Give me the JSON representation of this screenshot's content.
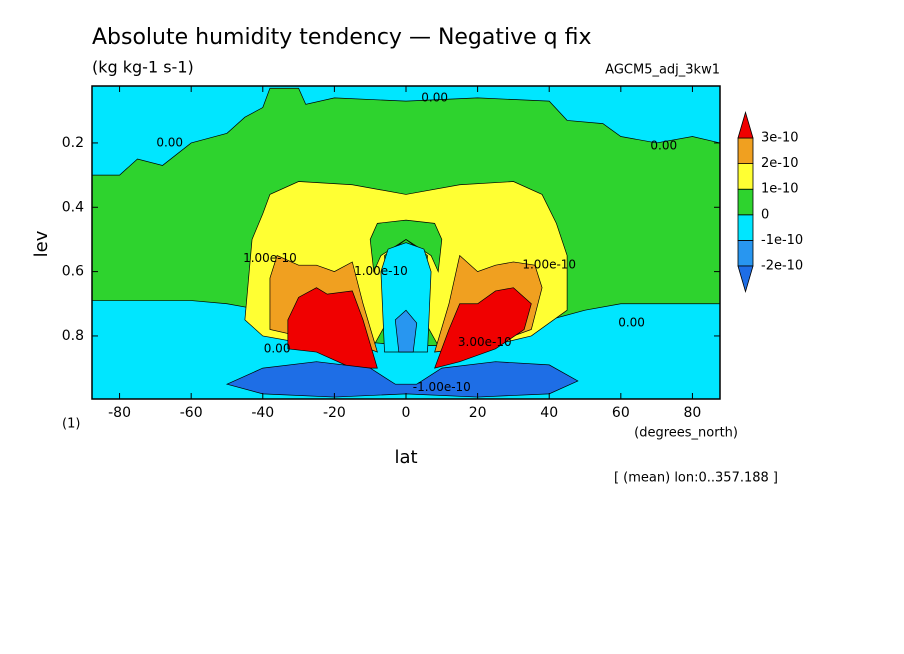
{
  "chart_data": {
    "type": "contour",
    "title": "Absolute humidity tendency — Negative q fix",
    "subtitle": "(kg kg-1 s-1)",
    "run_label": "AGCM5_adj_3kw1",
    "x_label": "lat",
    "x_units": "(degrees_north)",
    "y_label": "lev",
    "y_units": "(1)",
    "footnote": "[ (mean) lon:0..357.188 ]",
    "xlim": [
      -87.7,
      87.7
    ],
    "xticks": [
      -80,
      -60,
      -40,
      -20,
      0,
      20,
      40,
      60,
      80
    ],
    "ylim": [
      0.996,
      0.023
    ],
    "yticks": [
      0.2,
      0.4,
      0.6,
      0.8
    ],
    "levels": [
      -2e-10,
      -1e-10,
      0,
      1e-10,
      2e-10,
      3e-10
    ],
    "colors": [
      "#1e6ee6",
      "#2896f0",
      "#00e6ff",
      "#2ed32e",
      "#ffff33",
      "#f0a020",
      "#f00000"
    ],
    "regions": [
      {
        "color": "#2ed32e",
        "lat": [
          -87.7,
          -80,
          -75,
          -68,
          -60,
          -50,
          -45,
          -40,
          -38,
          -30,
          -28,
          -20,
          0,
          20,
          40,
          45,
          55,
          60,
          70,
          80,
          87.7,
          87.7,
          60,
          50,
          40,
          30,
          20,
          10,
          0,
          -10,
          -20,
          -30,
          -40,
          -50,
          -60,
          -87.7
        ],
        "lev": [
          0.3,
          0.3,
          0.25,
          0.27,
          0.2,
          0.17,
          0.12,
          0.09,
          0.03,
          0.03,
          0.08,
          0.06,
          0.07,
          0.06,
          0.07,
          0.13,
          0.14,
          0.18,
          0.2,
          0.18,
          0.2,
          0.7,
          0.7,
          0.72,
          0.75,
          0.79,
          0.82,
          0.83,
          0.83,
          0.82,
          0.79,
          0.78,
          0.72,
          0.7,
          0.69,
          0.69
        ]
      },
      {
        "color": "#ffff33",
        "lat": [
          -45,
          -43,
          -40,
          -38,
          -30,
          -15,
          0,
          15,
          30,
          38,
          42,
          45,
          45,
          35,
          20,
          10,
          5,
          6,
          0,
          -6,
          -5,
          -10,
          -25,
          -40
        ],
        "lev": [
          0.75,
          0.5,
          0.42,
          0.36,
          0.32,
          0.33,
          0.36,
          0.33,
          0.32,
          0.36,
          0.45,
          0.55,
          0.72,
          0.8,
          0.84,
          0.85,
          0.75,
          0.55,
          0.5,
          0.55,
          0.75,
          0.85,
          0.83,
          0.8
        ]
      },
      {
        "color": "#2ed32e",
        "lat": [
          -10,
          -8,
          0,
          8,
          10,
          9,
          7,
          0,
          -7,
          -9
        ],
        "lev": [
          0.5,
          0.45,
          0.44,
          0.45,
          0.5,
          0.6,
          0.55,
          0.5,
          0.55,
          0.6
        ]
      },
      {
        "color": "#00e6ff",
        "lat": [
          -7,
          -5,
          0,
          5,
          7,
          6,
          -6
        ],
        "lev": [
          0.6,
          0.53,
          0.51,
          0.53,
          0.6,
          0.85,
          0.85
        ]
      },
      {
        "color": "#f0a020",
        "lat": [
          -38,
          -36,
          -30,
          -25,
          -20,
          -15,
          -12,
          -8,
          -15,
          -30,
          -38
        ],
        "lev": [
          0.62,
          0.55,
          0.58,
          0.58,
          0.6,
          0.57,
          0.7,
          0.85,
          0.82,
          0.8,
          0.78
        ]
      },
      {
        "color": "#f0a020",
        "lat": [
          8,
          12,
          15,
          20,
          25,
          30,
          36,
          38,
          35,
          25,
          15
        ],
        "lev": [
          0.85,
          0.7,
          0.55,
          0.6,
          0.58,
          0.57,
          0.58,
          0.65,
          0.78,
          0.82,
          0.84
        ]
      },
      {
        "color": "#f00000",
        "lat": [
          -33,
          -30,
          -25,
          -22,
          -15,
          -12,
          -8,
          -15,
          -25,
          -33
        ],
        "lev": [
          0.75,
          0.68,
          0.65,
          0.67,
          0.66,
          0.75,
          0.9,
          0.9,
          0.85,
          0.84
        ]
      },
      {
        "color": "#f00000",
        "lat": [
          8,
          12,
          15,
          20,
          25,
          30,
          35,
          33,
          25,
          15
        ],
        "lev": [
          0.9,
          0.78,
          0.7,
          0.7,
          0.66,
          0.65,
          0.7,
          0.78,
          0.84,
          0.88
        ]
      },
      {
        "color": "#2896f0",
        "lat": [
          -3,
          0,
          3,
          2,
          -2
        ],
        "lev": [
          0.75,
          0.72,
          0.76,
          0.85,
          0.85
        ]
      },
      {
        "color": "#1e6ee6",
        "lat": [
          -50,
          -40,
          -25,
          -10,
          -3,
          3,
          10,
          25,
          40,
          48,
          40,
          20,
          0,
          -20,
          -40
        ],
        "lev": [
          0.95,
          0.9,
          0.88,
          0.9,
          0.95,
          0.95,
          0.9,
          0.88,
          0.89,
          0.94,
          0.98,
          0.99,
          0.98,
          0.99,
          0.98
        ]
      }
    ],
    "contour_labels": [
      "0.00",
      "0.00",
      "0.00",
      "0.00",
      "0.00",
      "1.00e-10",
      "1.00e-10",
      "1.00e-10",
      "3.00e-10",
      "-1.00e-10"
    ]
  }
}
